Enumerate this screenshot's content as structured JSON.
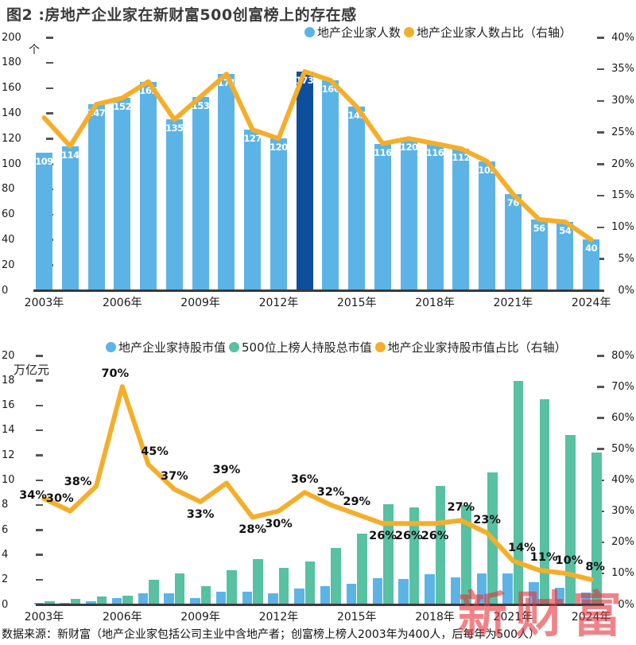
{
  "title": "图2 :房地产企业家在新财富500创富榜上的存在感",
  "footnote": "数据来源：新财富（地产企业家包括公司主业中含地产者；创富榜上榜人2003年为400人，后每年为500人）",
  "watermark": "新财富",
  "colors": {
    "bar_blue": "#5cb4e6",
    "bar_navy": "#0e4f9d",
    "bar_green": "#57c1a2",
    "line_orange": "#f5ae2a",
    "watermark_red": "#e6303a",
    "axis": "#3a3a3a"
  },
  "chart_data": [
    {
      "type": "bar",
      "legend": [
        {
          "label": "地产企业家人数",
          "color_key": "bar_blue"
        },
        {
          "label": "地产企业家人数占比（右轴）",
          "color_key": "line_orange"
        }
      ],
      "unit_left": "个",
      "years": [
        2003,
        2004,
        2005,
        2006,
        2007,
        2008,
        2009,
        2010,
        2011,
        2012,
        2013,
        2014,
        2015,
        2016,
        2017,
        2018,
        2019,
        2020,
        2021,
        2022,
        2023,
        2024
      ],
      "x_tick_labels": [
        "2003年",
        "2006年",
        "2009年",
        "2012年",
        "2015年",
        "2018年",
        "2021年",
        "2024年"
      ],
      "bars": {
        "name": "地产企业家人数",
        "values": [
          109,
          114,
          147,
          152,
          165,
          135,
          153,
          171,
          127,
          120,
          173,
          166,
          145,
          116,
          120,
          116,
          112,
          102,
          76,
          56,
          54,
          40
        ],
        "highlight_year": 2013
      },
      "line": {
        "name": "地产企业家人数占比",
        "values_pct": [
          27.3,
          22.8,
          29.4,
          30.4,
          33.0,
          27.0,
          30.6,
          34.2,
          25.4,
          24.0,
          34.6,
          33.2,
          29.0,
          23.2,
          24.0,
          23.2,
          22.4,
          20.4,
          15.2,
          11.2,
          10.8,
          8.0
        ]
      },
      "ylim_left": [
        0,
        200
      ],
      "ytick_step_left": 20,
      "ylim_right_pct": [
        0,
        40
      ],
      "ytick_step_right": 5,
      "grid": false,
      "legend_position": "top-right"
    },
    {
      "type": "bar",
      "legend": [
        {
          "label": "地产企业家持股市值",
          "color_key": "bar_blue"
        },
        {
          "label": "500位上榜人持股总市值",
          "color_key": "bar_green"
        },
        {
          "label": "地产企业家持股市值占比（右轴）",
          "color_key": "line_orange"
        }
      ],
      "unit_left": "万亿元",
      "years": [
        2003,
        2004,
        2005,
        2006,
        2007,
        2008,
        2009,
        2010,
        2011,
        2012,
        2013,
        2014,
        2015,
        2016,
        2017,
        2018,
        2019,
        2020,
        2021,
        2022,
        2023,
        2024
      ],
      "x_tick_labels": [
        "2003年",
        "2006年",
        "2009年",
        "2012年",
        "2015年",
        "2018年",
        "2021年",
        "2024年"
      ],
      "series": [
        {
          "name": "地产企业家持股市值",
          "color_key": "bar_blue",
          "values": [
            0.1,
            0.13,
            0.24,
            0.5,
            0.89,
            0.92,
            0.48,
            1.05,
            1.0,
            0.88,
            1.25,
            1.45,
            1.66,
            2.09,
            2.04,
            2.45,
            2.15,
            2.48,
            2.52,
            1.8,
            1.32,
            0.97
          ]
        },
        {
          "name": "500位上榜人持股总市值",
          "color_key": "bar_green",
          "values": [
            0.28,
            0.43,
            0.64,
            0.71,
            1.98,
            2.49,
            1.45,
            2.73,
            3.64,
            2.94,
            3.47,
            4.53,
            5.7,
            8.04,
            7.8,
            9.51,
            7.98,
            10.63,
            17.95,
            16.5,
            13.6,
            12.2
          ]
        }
      ],
      "line": {
        "name": "地产企业家持股市值占比",
        "values_pct": [
          34,
          30,
          38,
          70,
          45,
          37,
          33,
          39,
          28,
          30,
          36,
          32,
          29,
          26,
          26,
          26,
          27,
          23,
          14,
          11,
          10,
          8
        ],
        "labels": [
          "34%",
          "30%",
          "38%",
          "70%",
          "45%",
          "37%",
          "33%",
          "39%",
          "28%",
          "30%",
          "36%",
          "32%",
          "29%",
          "26%",
          "26%",
          "26%",
          "27%",
          "23%",
          "14%",
          "11%",
          "10%",
          "8%"
        ]
      },
      "ylim_left": [
        0,
        20
      ],
      "ytick_step_left": 2,
      "ylim_right_pct": [
        0,
        80
      ],
      "ytick_step_right": 10,
      "grid": false,
      "legend_position": "top-center"
    }
  ]
}
